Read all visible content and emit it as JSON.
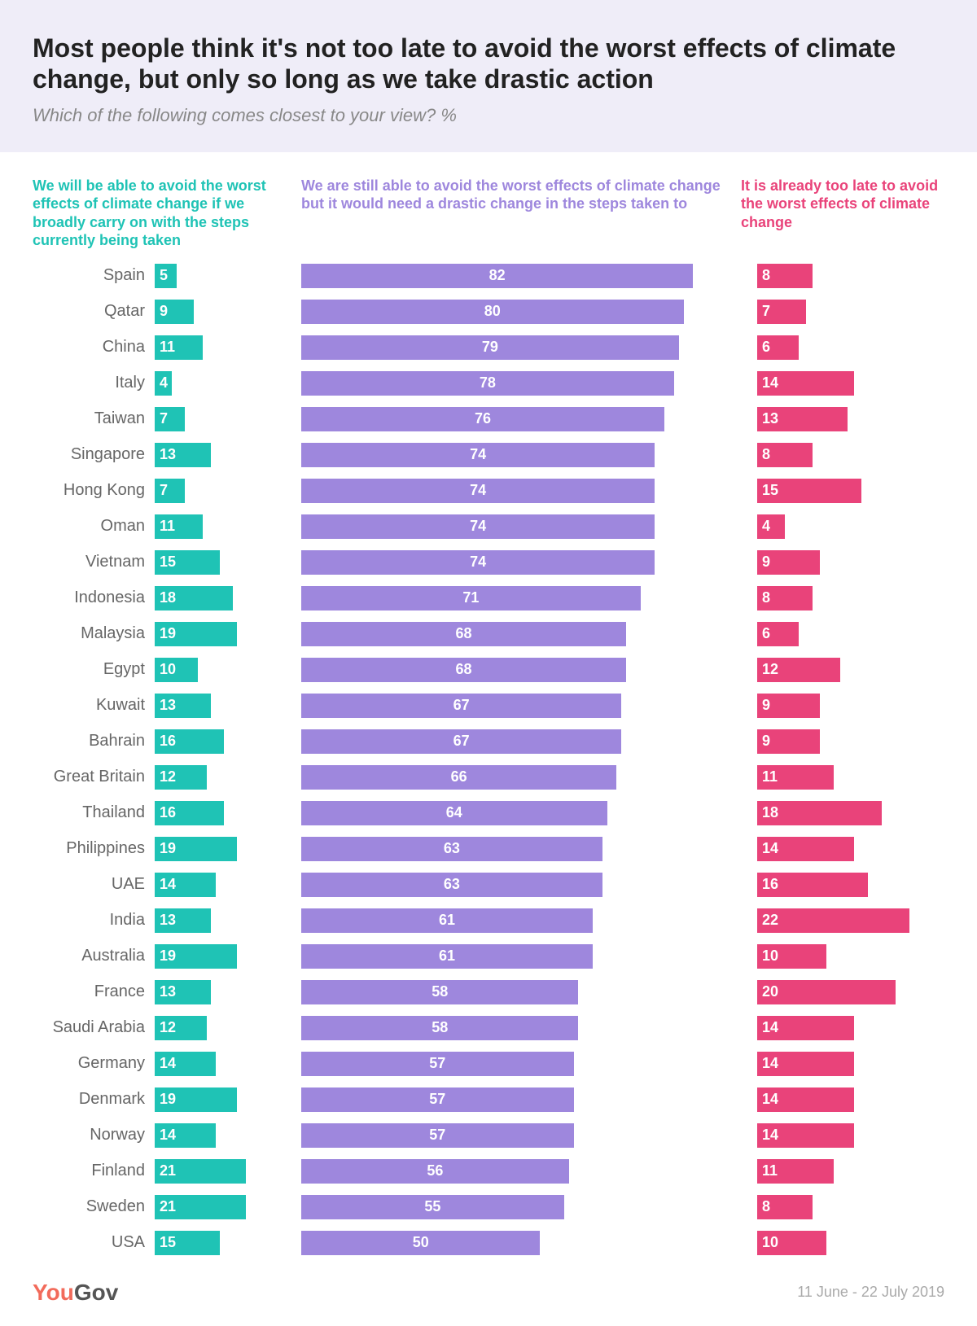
{
  "title": "Most people think it's not too late to avoid the worst effects of climate change, but only so long as we take drastic action",
  "subtitle": "Which of the following comes closest to your view? %",
  "colors": {
    "header_bg": "#efedf8",
    "title": "#222222",
    "subtitle": "#888888",
    "country_label": "#666666",
    "series1": "#1fc3b5",
    "series2": "#9e87dd",
    "series3": "#e9437a",
    "bar_text": "#ffffff",
    "brand_you": "#f26b5b",
    "brand_gov": "#555555",
    "date": "#aaaaaa"
  },
  "legends": {
    "s1": "We will be able to avoid the worst effects of climate change if we broadly carry on with the steps currently being taken",
    "s2": "We are still able to avoid the worst effects of climate change but it would need a drastic change in the steps taken to",
    "s3": "It is already too late to avoid the worst effects of climate change"
  },
  "scales": {
    "s1_max": 30,
    "s2_max": 92,
    "s3_max": 27
  },
  "rows": [
    {
      "country": "Spain",
      "s1": 5,
      "s2": 82,
      "s3": 8
    },
    {
      "country": "Qatar",
      "s1": 9,
      "s2": 80,
      "s3": 7
    },
    {
      "country": "China",
      "s1": 11,
      "s2": 79,
      "s3": 6
    },
    {
      "country": "Italy",
      "s1": 4,
      "s2": 78,
      "s3": 14
    },
    {
      "country": "Taiwan",
      "s1": 7,
      "s2": 76,
      "s3": 13
    },
    {
      "country": "Singapore",
      "s1": 13,
      "s2": 74,
      "s3": 8
    },
    {
      "country": "Hong Kong",
      "s1": 7,
      "s2": 74,
      "s3": 15
    },
    {
      "country": "Oman",
      "s1": 11,
      "s2": 74,
      "s3": 4
    },
    {
      "country": "Vietnam",
      "s1": 15,
      "s2": 74,
      "s3": 9
    },
    {
      "country": "Indonesia",
      "s1": 18,
      "s2": 71,
      "s3": 8
    },
    {
      "country": "Malaysia",
      "s1": 19,
      "s2": 68,
      "s3": 6
    },
    {
      "country": "Egypt",
      "s1": 10,
      "s2": 68,
      "s3": 12
    },
    {
      "country": "Kuwait",
      "s1": 13,
      "s2": 67,
      "s3": 9
    },
    {
      "country": "Bahrain",
      "s1": 16,
      "s2": 67,
      "s3": 9
    },
    {
      "country": "Great Britain",
      "s1": 12,
      "s2": 66,
      "s3": 11
    },
    {
      "country": "Thailand",
      "s1": 16,
      "s2": 64,
      "s3": 18
    },
    {
      "country": "Philippines",
      "s1": 19,
      "s2": 63,
      "s3": 14
    },
    {
      "country": "UAE",
      "s1": 14,
      "s2": 63,
      "s3": 16
    },
    {
      "country": "India",
      "s1": 13,
      "s2": 61,
      "s3": 22
    },
    {
      "country": "Australia",
      "s1": 19,
      "s2": 61,
      "s3": 10
    },
    {
      "country": "France",
      "s1": 13,
      "s2": 58,
      "s3": 20
    },
    {
      "country": "Saudi Arabia",
      "s1": 12,
      "s2": 58,
      "s3": 14
    },
    {
      "country": "Germany",
      "s1": 14,
      "s2": 57,
      "s3": 14
    },
    {
      "country": "Denmark",
      "s1": 19,
      "s2": 57,
      "s3": 14
    },
    {
      "country": "Norway",
      "s1": 14,
      "s2": 57,
      "s3": 14
    },
    {
      "country": "Finland",
      "s1": 21,
      "s2": 56,
      "s3": 11
    },
    {
      "country": "Sweden",
      "s1": 21,
      "s2": 55,
      "s3": 8
    },
    {
      "country": "USA",
      "s1": 15,
      "s2": 50,
      "s3": 10
    }
  ],
  "brand": {
    "you": "You",
    "gov": "Gov"
  },
  "date_range": "11 June - 22 July 2019"
}
